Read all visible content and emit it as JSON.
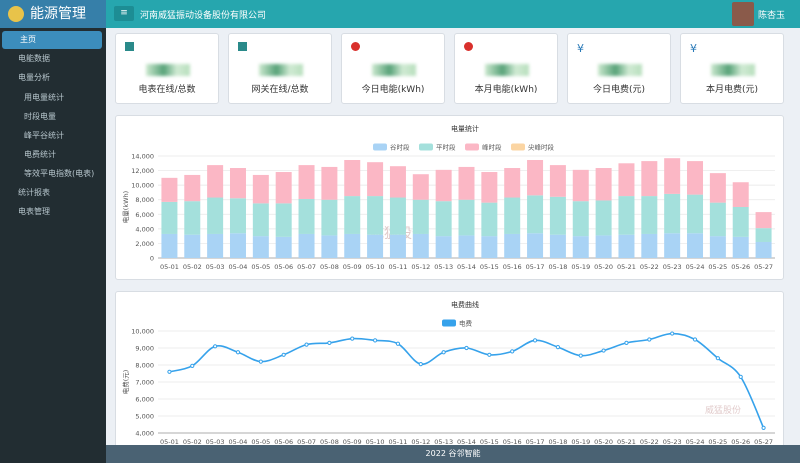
{
  "header": {
    "logo": "能源管理",
    "company": "河南威猛振动设备股份有限公司",
    "user": "陈杏玉"
  },
  "sidebar": {
    "items": [
      {
        "label": "主页"
      },
      {
        "label": "电能数据"
      },
      {
        "label": "电量分析"
      },
      {
        "label": "用电量统计"
      },
      {
        "label": "时段电量"
      },
      {
        "label": "峰平谷统计"
      },
      {
        "label": "电费统计"
      },
      {
        "label": "等效平电指数(电表)"
      },
      {
        "label": "统计报表"
      },
      {
        "label": "电表管理"
      }
    ]
  },
  "cards": [
    {
      "label": "电表在线/总数"
    },
    {
      "label": "网关在线/总数"
    },
    {
      "label": "今日电能(kWh)"
    },
    {
      "label": "本月电能(kWh)"
    },
    {
      "label": "今日电费(元)",
      "icon": "¥"
    },
    {
      "label": "本月电费(元)",
      "icon": "¥"
    }
  ],
  "chart_data": [
    {
      "type": "bar",
      "stacked": true,
      "title": "电量统计",
      "y_label": "电量(kWh)",
      "watermark": "威猛股份",
      "categories": [
        "05-01",
        "05-02",
        "05-03",
        "05-04",
        "05-05",
        "05-06",
        "05-07",
        "05-08",
        "05-09",
        "05-10",
        "05-11",
        "05-12",
        "05-13",
        "05-14",
        "05-15",
        "05-16",
        "05-17",
        "05-18",
        "05-19",
        "05-20",
        "05-21",
        "05-22",
        "05-23",
        "05-24",
        "05-25",
        "05-26",
        "05-27"
      ],
      "series": [
        {
          "name": "谷时段",
          "color": "#a9d3f5",
          "values": [
            3300,
            3200,
            3300,
            3400,
            3000,
            2900,
            3300,
            3100,
            3300,
            3200,
            3200,
            3300,
            3000,
            3100,
            3000,
            3300,
            3400,
            3200,
            3000,
            3100,
            3200,
            3300,
            3400,
            3400,
            3000,
            2900,
            2200
          ]
        },
        {
          "name": "平时段",
          "color": "#a4e0dc",
          "values": [
            4400,
            4600,
            5000,
            4800,
            4500,
            4600,
            4800,
            4900,
            5200,
            5300,
            5100,
            4700,
            4800,
            4900,
            4600,
            5000,
            5200,
            5200,
            4800,
            4800,
            5300,
            5200,
            5400,
            5300,
            4600,
            4100,
            1900
          ]
        },
        {
          "name": "峰时段",
          "color": "#fbb7c5",
          "values": [
            3300,
            3600,
            4450,
            4150,
            3900,
            4300,
            4650,
            4500,
            4950,
            4650,
            4300,
            3500,
            4300,
            4500,
            4200,
            4050,
            4850,
            4350,
            4300,
            4450,
            4500,
            4800,
            4900,
            4600,
            4050,
            3400,
            2200
          ]
        },
        {
          "name": "尖峰时段",
          "color": "#fbd5a3",
          "values": [
            0,
            0,
            0,
            0,
            0,
            0,
            0,
            0,
            0,
            0,
            0,
            0,
            0,
            0,
            0,
            0,
            0,
            0,
            0,
            0,
            0,
            0,
            0,
            0,
            0,
            0,
            0
          ]
        }
      ],
      "ylim": [
        0,
        14000
      ],
      "yticks": [
        0,
        {
          "value": 2000,
          "label": "2,000"
        },
        {
          "value": 4000,
          "label": "4,000"
        },
        {
          "value": 6000,
          "label": "6,000"
        },
        {
          "value": 8000,
          "label": "8,000"
        },
        {
          "value": 10000,
          "label": "10,000"
        },
        {
          "value": 12000,
          "label": "12,000"
        },
        {
          "value": 14000,
          "label": "14,000"
        }
      ],
      "grid": true
    },
    {
      "type": "line",
      "title": "电费曲线",
      "y_label": "电费(元)",
      "watermark": "威猛股份",
      "categories": [
        "05-01",
        "05-02",
        "05-03",
        "05-04",
        "05-05",
        "05-06",
        "05-07",
        "05-08",
        "05-09",
        "05-10",
        "05-11",
        "05-12",
        "05-13",
        "05-14",
        "05-15",
        "05-16",
        "05-17",
        "05-18",
        "05-19",
        "05-20",
        "05-21",
        "05-22",
        "05-23",
        "05-24",
        "05-25",
        "05-26",
        "05-27"
      ],
      "series": [
        {
          "name": "电费",
          "color": "#36a2eb",
          "values": [
            7600,
            7950,
            9100,
            8750,
            8200,
            8600,
            9200,
            9300,
            9550,
            9450,
            9250,
            8050,
            8750,
            9000,
            8600,
            8800,
            9450,
            9050,
            8550,
            8850,
            9300,
            9500,
            9850,
            9500,
            8400,
            7300,
            4300
          ]
        }
      ],
      "ylim": [
        4000,
        10000
      ],
      "yticks": [
        {
          "value": 4000,
          "label": "4,000"
        },
        {
          "value": 5000,
          "label": "5,000"
        },
        {
          "value": 6000,
          "label": "6,000"
        },
        {
          "value": 7000,
          "label": "7,000"
        },
        {
          "value": 8000,
          "label": "8,000"
        },
        {
          "value": 9000,
          "label": "9,000"
        },
        {
          "value": 10000,
          "label": "10,000"
        }
      ],
      "grid": true
    }
  ],
  "footer": "2022 谷邻智能"
}
